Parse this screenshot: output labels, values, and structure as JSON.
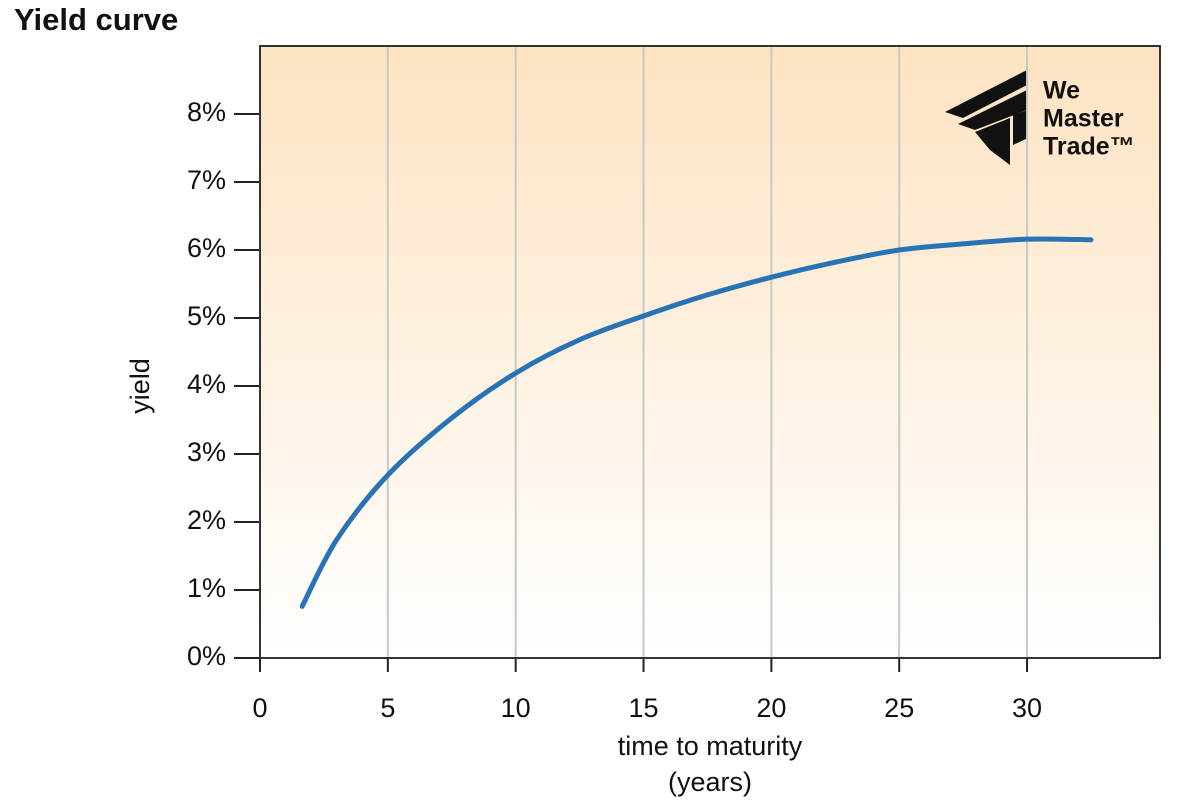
{
  "chart_data": {
    "type": "line",
    "title": "Yield curve",
    "xlabel": [
      "time to maturity",
      "(years)"
    ],
    "ylabel": "yield",
    "watermark": [
      "We",
      "Master",
      "Trade™"
    ],
    "x": [
      1.65,
      3,
      5,
      7.5,
      10,
      12.5,
      15,
      17.5,
      20,
      22.5,
      25,
      27.5,
      30,
      32.5
    ],
    "series": [
      {
        "name": "yield",
        "color": "#2872b6",
        "values": [
          0.76,
          1.74,
          2.69,
          3.53,
          4.19,
          4.68,
          5.03,
          5.34,
          5.6,
          5.82,
          6.0,
          6.09,
          6.16,
          6.15
        ]
      }
    ],
    "xlim": [
      0,
      35.2
    ],
    "xticks": [
      0,
      5,
      10,
      15,
      20,
      25,
      30
    ],
    "ylim": [
      0,
      9
    ],
    "yticks": [
      {
        "value": 0,
        "label": "0%"
      },
      {
        "value": 1,
        "label": "1%"
      },
      {
        "value": 2,
        "label": "2%"
      },
      {
        "value": 3,
        "label": "3%"
      },
      {
        "value": 4,
        "label": "4%"
      },
      {
        "value": 5,
        "label": "5%"
      },
      {
        "value": 6,
        "label": "6%"
      },
      {
        "value": 7,
        "label": "7%"
      },
      {
        "value": 8,
        "label": "8%"
      }
    ],
    "grid": "x"
  }
}
